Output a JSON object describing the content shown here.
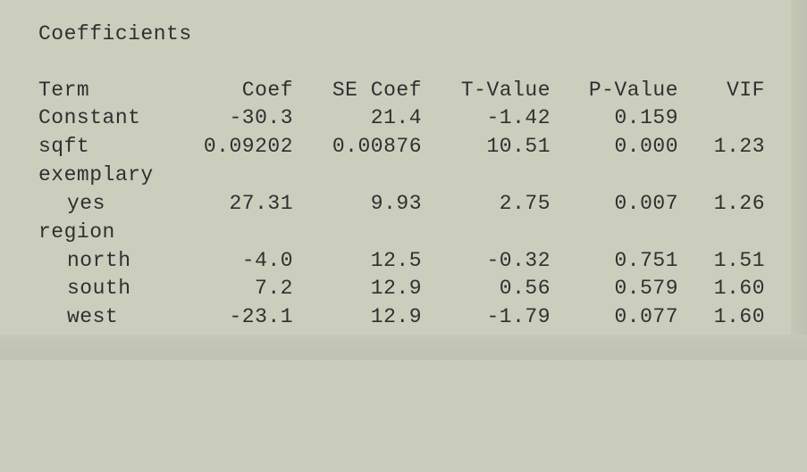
{
  "title": "Coefficients",
  "headers": {
    "term": "Term",
    "coef": "Coef",
    "se_coef": "SE Coef",
    "t_value": "T-Value",
    "p_value": "P-Value",
    "vif": "VIF"
  },
  "rows": [
    {
      "term": "Constant",
      "coef": "-30.3",
      "se_coef": "21.4",
      "t_value": "-1.42",
      "p_value": "0.159",
      "vif": ""
    },
    {
      "term": "sqft",
      "coef": "0.09202",
      "se_coef": "0.00876",
      "t_value": "10.51",
      "p_value": "0.000",
      "vif": "1.23"
    },
    {
      "term": "exemplary",
      "coef": "",
      "se_coef": "",
      "t_value": "",
      "p_value": "",
      "vif": ""
    },
    {
      "term": "yes",
      "coef": "27.31",
      "se_coef": "9.93",
      "t_value": "2.75",
      "p_value": "0.007",
      "vif": "1.26"
    },
    {
      "term": "region",
      "coef": "",
      "se_coef": "",
      "t_value": "",
      "p_value": "",
      "vif": ""
    },
    {
      "term": "north",
      "coef": "-4.0",
      "se_coef": "12.5",
      "t_value": "-0.32",
      "p_value": "0.751",
      "vif": "1.51"
    },
    {
      "term": "south",
      "coef": "7.2",
      "se_coef": "12.9",
      "t_value": "0.56",
      "p_value": "0.579",
      "vif": "1.60"
    },
    {
      "term": "west",
      "coef": "-23.1",
      "se_coef": "12.9",
      "t_value": "-1.79",
      "p_value": "0.077",
      "vif": "1.60"
    }
  ]
}
